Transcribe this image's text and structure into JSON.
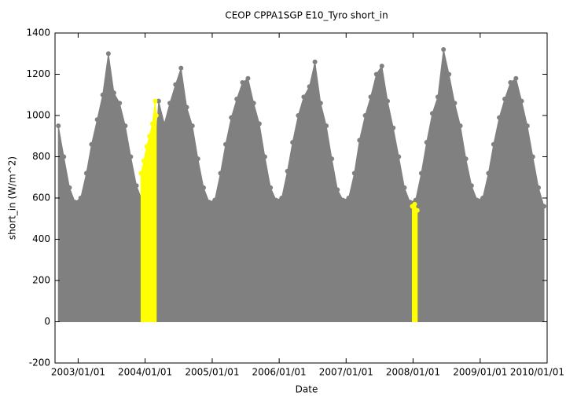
{
  "chart_data": {
    "type": "area",
    "title": "CEOP CPPA1SGP E10_Tyro  short_in",
    "xlabel": "Date",
    "ylabel": "short_in (W/m^2)",
    "xlim": [
      "2002/08/28",
      "2010/01/01"
    ],
    "xticks": [
      "2003/01/01",
      "2004/01/01",
      "2005/01/01",
      "2006/01/01",
      "2007/01/01",
      "2008/01/01",
      "2009/01/01",
      "2010/01/01"
    ],
    "ylim": [
      -200,
      1400
    ],
    "yticks": [
      -200,
      0,
      200,
      400,
      600,
      800,
      1000,
      1200,
      1400
    ],
    "series": [
      {
        "color": "#808080",
        "x": [
          "2002/09/15",
          "2002/10/15",
          "2002/11/15",
          "2002/12/15",
          "2003/01/15",
          "2003/02/15",
          "2003/03/15",
          "2003/04/15",
          "2003/05/15",
          "2003/06/15",
          "2003/07/15",
          "2003/08/15",
          "2003/09/15",
          "2003/10/15",
          "2003/11/15",
          "2003/12/15",
          "2004/01/15",
          "2004/02/15",
          "2004/03/15",
          "2004/04/15",
          "2004/05/15",
          "2004/06/15",
          "2004/07/15",
          "2004/08/15",
          "2004/09/15",
          "2004/10/15",
          "2004/11/15",
          "2004/12/15",
          "2005/01/15",
          "2005/02/15",
          "2005/03/15",
          "2005/04/15",
          "2005/05/15",
          "2005/06/15",
          "2005/07/15",
          "2005/08/15",
          "2005/09/15",
          "2005/10/15",
          "2005/11/15",
          "2005/12/15",
          "2006/01/15",
          "2006/02/15",
          "2006/03/15",
          "2006/04/15",
          "2006/05/15",
          "2006/06/15",
          "2006/07/15",
          "2006/08/15",
          "2006/09/15",
          "2006/10/15",
          "2006/11/15",
          "2006/12/15",
          "2007/01/15",
          "2007/02/15",
          "2007/03/15",
          "2007/04/15",
          "2007/05/15",
          "2007/06/15",
          "2007/07/15",
          "2007/08/15",
          "2007/09/15",
          "2007/10/15",
          "2007/11/15",
          "2007/12/15",
          "2008/01/15",
          "2008/02/15",
          "2008/03/15",
          "2008/04/15",
          "2008/05/15",
          "2008/06/15",
          "2008/07/15",
          "2008/08/15",
          "2008/09/15",
          "2008/10/15",
          "2008/11/15",
          "2008/12/15",
          "2009/01/15",
          "2009/02/15",
          "2009/03/15",
          "2009/04/15",
          "2009/05/15",
          "2009/06/15",
          "2009/07/15",
          "2009/08/15",
          "2009/09/15",
          "2009/10/15",
          "2009/11/15",
          "2009/12/15"
        ],
        "values": [
          950,
          800,
          650,
          580,
          600,
          720,
          860,
          980,
          1100,
          1300,
          1110,
          1060,
          950,
          800,
          660,
          590,
          610,
          700,
          1070,
          960,
          1060,
          1150,
          1230,
          1040,
          950,
          790,
          650,
          580,
          590,
          720,
          860,
          990,
          1080,
          1160,
          1180,
          1060,
          960,
          800,
          650,
          590,
          600,
          730,
          870,
          1000,
          1090,
          1140,
          1260,
          1060,
          950,
          790,
          640,
          590,
          600,
          720,
          880,
          1000,
          1090,
          1200,
          1240,
          1070,
          940,
          800,
          650,
          580,
          590,
          720,
          870,
          1010,
          1090,
          1320,
          1200,
          1060,
          950,
          790,
          660,
          590,
          600,
          720,
          860,
          990,
          1080,
          1160,
          1180,
          1070,
          950,
          800,
          650,
          560
        ]
      },
      {
        "color": "#ffff00",
        "x": [
          "2003/12/10",
          "2003/12/25",
          "2004/01/10",
          "2004/01/25",
          "2004/02/10",
          "2004/02/25",
          "2004/03/02",
          null,
          "2007/12/28",
          "2008/01/10",
          "2008/01/24"
        ],
        "values": [
          720,
          780,
          850,
          900,
          960,
          1070,
          1000,
          null,
          560,
          570,
          540
        ]
      }
    ]
  }
}
